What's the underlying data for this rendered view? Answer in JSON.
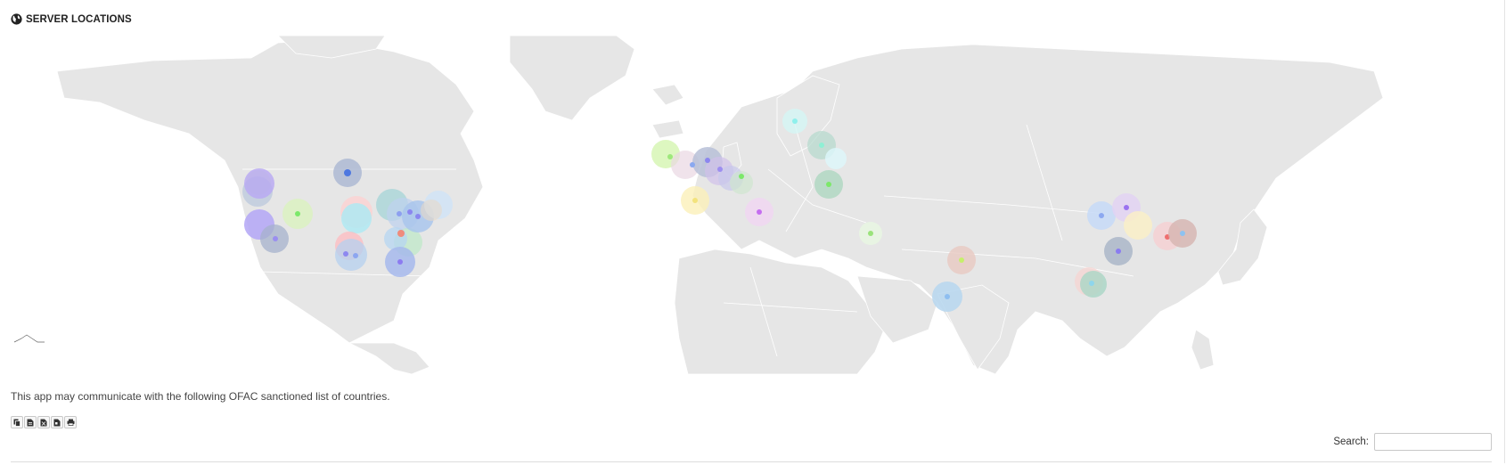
{
  "header": {
    "icon": "globe-icon",
    "title": "SERVER LOCATIONS"
  },
  "map": {
    "land_color": "#e6e6e6",
    "background": "#ffffff"
  },
  "notice": "This app may communicate with the following OFAC sanctioned list of countries.",
  "export_buttons": [
    {
      "name": "copy-button",
      "icon": "copy-icon"
    },
    {
      "name": "csv-button",
      "icon": "csv-file-icon"
    },
    {
      "name": "excel-button",
      "icon": "excel-file-icon"
    },
    {
      "name": "pdf-button",
      "icon": "pdf-file-icon"
    },
    {
      "name": "print-button",
      "icon": "print-icon"
    }
  ],
  "search": {
    "label": "Search:",
    "value": "",
    "placeholder": ""
  }
}
